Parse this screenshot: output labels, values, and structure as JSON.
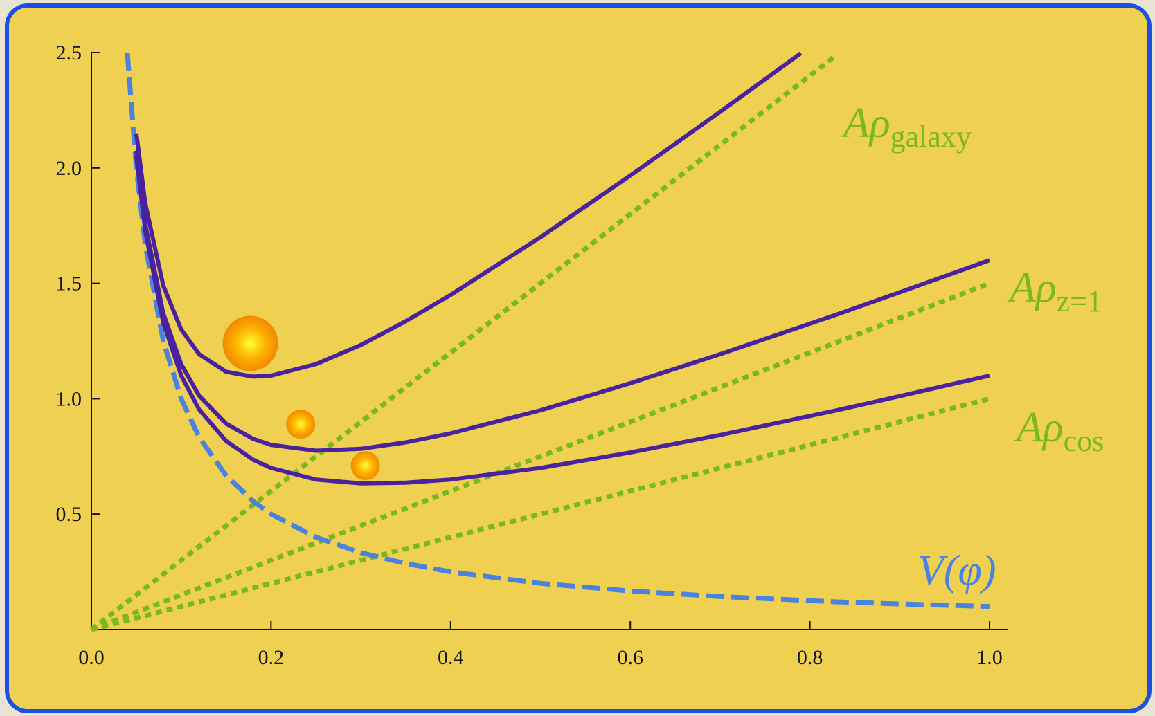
{
  "chart_data": {
    "type": "line",
    "x": [
      0,
      0.04,
      0.05,
      0.06,
      0.08,
      0.1,
      0.12,
      0.15,
      0.18,
      0.2,
      0.25,
      0.3,
      0.35,
      0.4,
      0.5,
      0.6,
      0.7,
      0.79,
      0.83,
      0.9,
      1.0
    ],
    "series": [
      {
        "color": "#7ab820",
        "style": "dotted",
        "values": [
          0,
          0.12,
          0.15,
          0.18,
          0.24,
          0.3,
          0.36,
          0.45,
          0.54,
          0.6,
          0.75,
          0.9,
          1.05,
          1.2,
          1.5,
          1.8,
          2.1,
          2.37,
          2.49,
          null,
          null
        ]
      },
      {
        "color": "#7ab820",
        "style": "dotted",
        "values": [
          0,
          0.06,
          0.075,
          0.09,
          0.12,
          0.15,
          0.18,
          0.225,
          0.27,
          0.3,
          0.375,
          0.45,
          0.525,
          0.6,
          0.75,
          0.9,
          1.05,
          1.185,
          1.245,
          1.35,
          1.5
        ]
      },
      {
        "color": "#7ab820",
        "style": "dotted",
        "values": [
          0,
          0.04,
          0.05,
          0.06,
          0.08,
          0.1,
          0.12,
          0.15,
          0.18,
          0.2,
          0.25,
          0.3,
          0.35,
          0.4,
          0.5,
          0.6,
          0.7,
          0.79,
          0.83,
          0.9,
          1.0
        ]
      },
      {
        "color": "#4a82e0",
        "style": "dashed",
        "values": [
          null,
          2.5,
          2.0,
          1.667,
          1.25,
          1.0,
          0.833,
          0.667,
          0.556,
          0.5,
          0.4,
          0.333,
          0.286,
          0.25,
          0.2,
          0.167,
          0.143,
          0.127,
          0.12,
          0.111,
          0.1
        ]
      },
      {
        "color": "#4a22a0",
        "style": "solid",
        "values": [
          null,
          null,
          2.15,
          1.847,
          1.49,
          1.3,
          1.193,
          1.117,
          1.096,
          1.1,
          1.15,
          1.233,
          1.336,
          1.45,
          1.7,
          1.967,
          2.243,
          2.497,
          null,
          null,
          null
        ]
      },
      {
        "color": "#4a22a0",
        "style": "solid",
        "values": [
          null,
          null,
          2.075,
          1.757,
          1.37,
          1.15,
          1.013,
          0.892,
          0.826,
          0.8,
          0.775,
          0.783,
          0.811,
          0.85,
          0.95,
          1.067,
          1.193,
          1.312,
          1.365,
          1.461,
          1.6
        ]
      },
      {
        "color": "#4a22a0",
        "style": "solid",
        "values": [
          null,
          null,
          2.05,
          1.727,
          1.33,
          1.1,
          0.953,
          0.817,
          0.736,
          0.7,
          0.65,
          0.633,
          0.636,
          0.65,
          0.7,
          0.767,
          0.843,
          0.917,
          0.95,
          1.011,
          1.1
        ]
      }
    ],
    "balls": {
      "x": [
        0.177,
        0.233,
        0.305
      ],
      "y": [
        1.24,
        0.89,
        0.71
      ]
    },
    "annotations": [
      {
        "text": "Aρ",
        "sub": "galaxy",
        "color": "#7ab820"
      },
      {
        "text": "Aρ",
        "sub": "z=1",
        "color": "#7ab820"
      },
      {
        "text": "Aρ",
        "sub": "cos",
        "color": "#7ab820"
      },
      {
        "text": "V(φ)",
        "color": "#4a82e0"
      }
    ],
    "xlim": [
      0,
      1.0
    ],
    "ylim": [
      0,
      2.5
    ],
    "xticks": [
      {
        "value": 0,
        "label": "0.0"
      },
      0.2,
      0.4,
      0.6,
      0.8,
      {
        "value": 1.0,
        "label": "1.0"
      }
    ],
    "yticks": [
      0.5,
      {
        "value": 1.0,
        "label": "1.0"
      },
      1.5,
      {
        "value": 2.0,
        "label": "2.0"
      },
      2.5
    ]
  }
}
